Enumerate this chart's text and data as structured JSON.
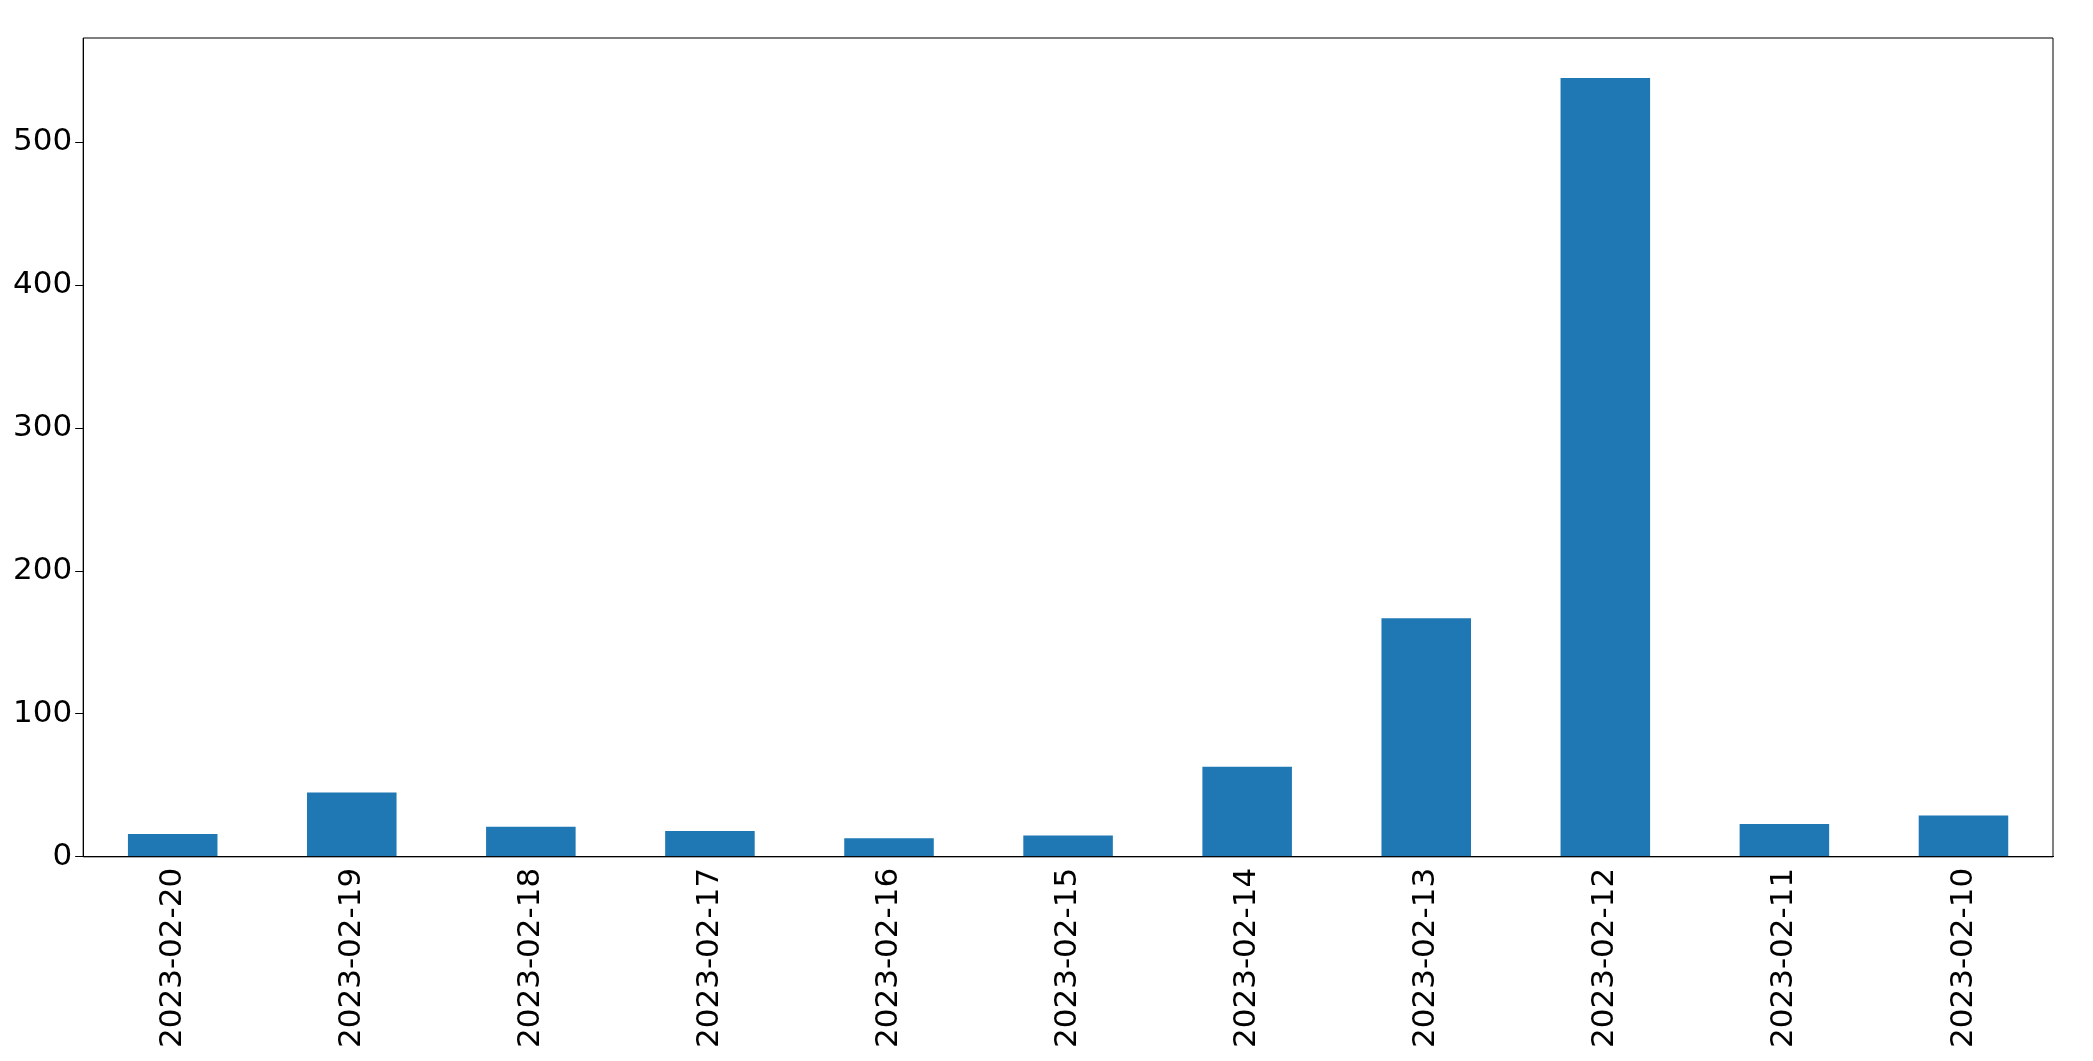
{
  "chart_data": {
    "type": "bar",
    "categories": [
      "2023-02-20",
      "2023-02-19",
      "2023-02-18",
      "2023-02-17",
      "2023-02-16",
      "2023-02-15",
      "2023-02-14",
      "2023-02-13",
      "2023-02-12",
      "2023-02-11",
      "2023-02-10"
    ],
    "values": [
      16,
      45,
      21,
      18,
      13,
      15,
      63,
      167,
      545,
      23,
      29
    ],
    "color": "#1f77b4",
    "ylim": [
      0,
      573
    ],
    "yticks": [
      0,
      100,
      200,
      300,
      400,
      500
    ],
    "grid": false,
    "legend": false
  }
}
